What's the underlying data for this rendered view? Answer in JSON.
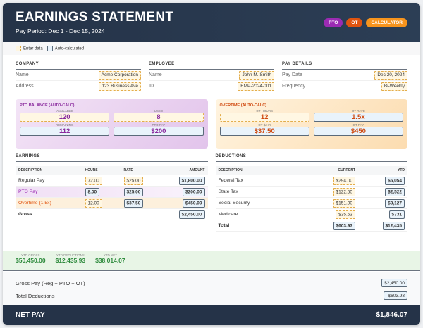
{
  "header": {
    "title": "EARNINGS STATEMENT",
    "pay_period": "Pay Period: Dec 1 - Dec 15, 2024",
    "badges": [
      {
        "label": "PTO",
        "color": "#9b2bb3"
      },
      {
        "label": "OT",
        "color": "#e0540f"
      },
      {
        "label": "CALCULATOR",
        "color": "#f7941d"
      }
    ]
  },
  "legend": {
    "enter": "Enter data",
    "auto": "Auto-calculated"
  },
  "company": {
    "heading": "COMPANY",
    "name_label": "Name",
    "name": "Acme Corporation",
    "address_label": "Address",
    "address": "123 Business Ave"
  },
  "employee": {
    "heading": "EMPLOYEE",
    "name_label": "Name",
    "name": "John M. Smith",
    "id_label": "ID",
    "id": "EMP-2024-001"
  },
  "pay_details": {
    "heading": "PAY DETAILS",
    "date_label": "Pay Date",
    "date": "Dec 20, 2024",
    "freq_label": "Frequency",
    "freq": "Bi-Weekly"
  },
  "pto": {
    "title": "PTO BALANCE (AUTO-CALC)",
    "available_label": "AVAILABLE",
    "available": "120",
    "used_label": "USED",
    "used": "8",
    "remaining_label": "REMAINING",
    "remaining": "112",
    "pay_label": "PTO PAY",
    "pay": "$200"
  },
  "ot": {
    "title": "OVERTIME (AUTO-CALC)",
    "hours_label": "OT HOURS",
    "hours": "12",
    "rate_label": "OT RATE",
    "rate": "1.5x",
    "hr_label": "OT $/HR",
    "hr": "$37.50",
    "pay_label": "OT PAY",
    "pay": "$450"
  },
  "earnings": {
    "heading": "EARNINGS",
    "cols": [
      "DESCRIPTION",
      "HOURS",
      "RATE",
      "AMOUNT"
    ],
    "rows": [
      {
        "desc": "Regular Pay",
        "hours": "72.00",
        "rate": "$25.00",
        "amount": "$1,800.00"
      },
      {
        "desc": "PTO Pay",
        "hours": "8.00",
        "rate": "$25.00",
        "amount": "$200.00"
      },
      {
        "desc": "Overtime (1.5x)",
        "hours": "12.00",
        "rate": "$37.50",
        "amount": "$450.00"
      }
    ],
    "gross_label": "Gross",
    "gross": "$2,450.00"
  },
  "deductions": {
    "heading": "DEDUCTIONS",
    "cols": [
      "DESCRIPTION",
      "CURRENT",
      "YTD"
    ],
    "rows": [
      {
        "desc": "Federal Tax",
        "current": "$294.00",
        "ytd": "$6,054"
      },
      {
        "desc": "State Tax",
        "current": "$122.50",
        "ytd": "$2,522"
      },
      {
        "desc": "Social Security",
        "current": "$151.90",
        "ytd": "$3,127"
      },
      {
        "desc": "Medicare",
        "current": "$35.53",
        "ytd": "$731"
      }
    ],
    "total_label": "Total",
    "total": "$603.93",
    "total_ytd": "$12,435"
  },
  "ytd": {
    "gross_label": "YTD GROSS",
    "gross": "$50,450.00",
    "ded_label": "YTD DEDUCTIONS",
    "ded": "$12,435.93",
    "net_label": "YTD NET",
    "net": "$38,014.07"
  },
  "summary": {
    "gross_label": "Gross Pay (Reg + PTO + OT)",
    "gross": "$2,450.00",
    "ded_label": "Total Deductions",
    "ded": "-$603.93"
  },
  "net": {
    "label": "NET PAY",
    "value": "$1,846.07"
  }
}
